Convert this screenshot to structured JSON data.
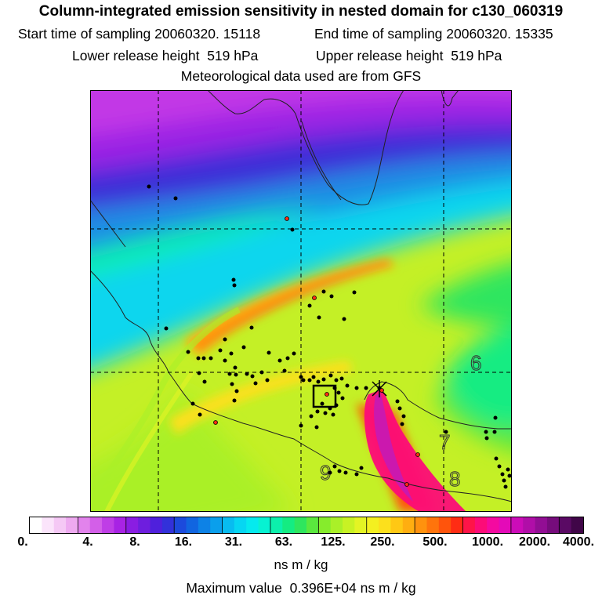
{
  "header": {
    "title": "Column-integrated emission sensitivity in nested domain for c130_060319",
    "start_label": "Start time of sampling",
    "start_value": "20060320. 15118",
    "end_label": "End time of sampling",
    "end_value": "20060320. 15335",
    "lower_label": "Lower release height",
    "lower_value": "519 hPa",
    "upper_label": "Upper release height",
    "upper_value": "519 hPa",
    "met_note": "Meteorological data used are from GFS"
  },
  "map": {
    "contour_labels": [
      "6",
      "7",
      "8",
      "9"
    ]
  },
  "colorbar": {
    "ticks": [
      "0.",
      "4.",
      "8.",
      "16.",
      "31.",
      "63.",
      "125.",
      "250.",
      "500.",
      "1000.",
      "2000.",
      "4000."
    ],
    "colors": [
      "#ffffff",
      "#fbe4fb",
      "#f5c8f5",
      "#eeaaf0",
      "#e283ec",
      "#d35fe8",
      "#bf3ee6",
      "#a823e4",
      "#8a1de2",
      "#6e1ede",
      "#4f20dc",
      "#3231da",
      "#1c4adc",
      "#1165e0",
      "#0d82e6",
      "#0a9fec",
      "#08bcf0",
      "#06d6f2",
      "#05eaee",
      "#07f2d2",
      "#0cf0ac",
      "#14ec82",
      "#2ee65e",
      "#5ae83e",
      "#86ec2c",
      "#aaf028",
      "#c8f224",
      "#e4f424",
      "#f4f020",
      "#fce01c",
      "#ffc814",
      "#ffae10",
      "#ff920e",
      "#ff740c",
      "#ff540c",
      "#ff2c14",
      "#ff1448",
      "#fc0c78",
      "#f40aa0",
      "#e40ab8",
      "#cc0cb8",
      "#b00ea8",
      "#920e94",
      "#760c7c",
      "#5a0a64",
      "#400648"
    ],
    "units": "ns m / kg",
    "max_label": "Maximum value",
    "max_value": "0.396E+04 ns m / kg"
  }
}
